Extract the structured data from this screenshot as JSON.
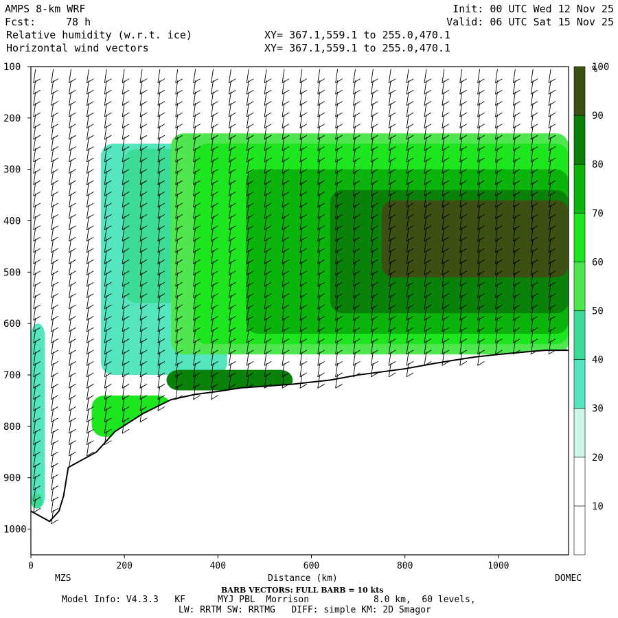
{
  "header": {
    "model": "AMPS 8-km WRF",
    "fcst_label": "Fcst:",
    "fcst_value": "78 h",
    "field1": "Relative humidity (w.r.t. ice)",
    "field2": "Horizontal wind vectors",
    "init": "Init: 00 UTC Wed 12 Nov 25",
    "valid": "Valid: 06 UTC Sat 15 Nov 25",
    "xy1": "XY= 367.1,559.1 to 255.0,470.1",
    "xy2": "XY= 367.1,559.1 to 255.0,470.1"
  },
  "footer": {
    "left_station": "MZS",
    "right_station": "DOMEC",
    "barb_note": "BARB VECTORS: FULL BARB = 10 kts",
    "model_info": "Model Info: V4.3.3   KF      MYJ PBL  Morrison            8.0 km,  60 levels,",
    "model_info2": "LW: RRTM SW: RRTMG   DIFF: simple KM: 2D Smagor"
  },
  "colorbar": {
    "unit": "%",
    "ticks": [
      "10",
      "20",
      "30",
      "40",
      "50",
      "60",
      "70",
      "80",
      "90",
      "100"
    ],
    "colors": [
      "#ffffff",
      "#ffffff",
      "#ccf7e6",
      "#55e6bf",
      "#3cdc96",
      "#50e650",
      "#1ee61e",
      "#0ab40a",
      "#0a820a",
      "#3c5014"
    ]
  },
  "chart_data": {
    "type": "heatmap",
    "title": "Relative humidity (w.r.t. ice)",
    "xlabel": "Distance (km)",
    "ylabel": "",
    "xlim": [
      0,
      1150
    ],
    "ylim": [
      1050,
      100
    ],
    "x_ticks": [
      "0",
      "200",
      "400",
      "600",
      "800",
      "1000"
    ],
    "y_ticks": [
      "100",
      "200",
      "300",
      "400",
      "500",
      "600",
      "700",
      "800",
      "900",
      "1000"
    ],
    "terrain_km": [
      0,
      20,
      40,
      60,
      70,
      80,
      100,
      140,
      180,
      240,
      300,
      350,
      400,
      450,
      500,
      560,
      640,
      700,
      800,
      860,
      900,
      950,
      1000,
      1060,
      1100,
      1150
    ],
    "terrain_hpa": [
      965,
      975,
      985,
      965,
      935,
      880,
      870,
      850,
      810,
      775,
      748,
      738,
      732,
      725,
      722,
      718,
      710,
      700,
      688,
      678,
      672,
      665,
      660,
      655,
      652,
      652
    ],
    "rh_regions": [
      {
        "rh": 35,
        "km": [
          0,
          30
        ],
        "hpa": [
          600,
          960
        ]
      },
      {
        "rh": 45,
        "km": [
          0,
          25
        ],
        "hpa": [
          930,
          960
        ]
      },
      {
        "rh": 35,
        "km": [
          150,
          420
        ],
        "hpa": [
          250,
          700
        ]
      },
      {
        "rh": 45,
        "km": [
          200,
          420
        ],
        "hpa": [
          260,
          560
        ]
      },
      {
        "rh": 55,
        "km": [
          300,
          1150
        ],
        "hpa": [
          230,
          660
        ]
      },
      {
        "rh": 65,
        "km": [
          350,
          1150
        ],
        "hpa": [
          250,
          640
        ]
      },
      {
        "rh": 75,
        "km": [
          460,
          1150
        ],
        "hpa": [
          300,
          620
        ]
      },
      {
        "rh": 85,
        "km": [
          640,
          1150
        ],
        "hpa": [
          340,
          580
        ]
      },
      {
        "rh": 95,
        "km": [
          750,
          1150
        ],
        "hpa": [
          360,
          510
        ]
      },
      {
        "rh": 100,
        "km": [
          840,
          1150
        ],
        "hpa": [
          370,
          450
        ]
      },
      {
        "rh": 85,
        "km": [
          290,
          560
        ],
        "hpa": [
          690,
          730
        ]
      },
      {
        "rh": 65,
        "km": [
          130,
          300
        ],
        "hpa": [
          740,
          820
        ]
      }
    ]
  }
}
